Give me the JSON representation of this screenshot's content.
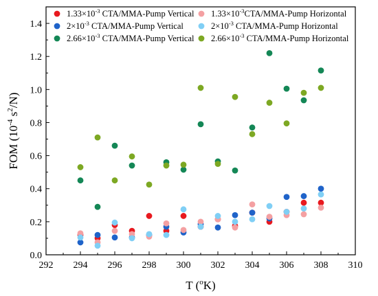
{
  "chart_data": {
    "type": "scatter",
    "title": "",
    "xlabel": "T (°K)",
    "xlabel_parts": {
      "pre": "T (",
      "sup": "o",
      "post": "K)"
    },
    "ylabel_parts": {
      "pre": "FOM (10",
      "sup1": "-4",
      "mid": " s",
      "sup2": "2",
      "post": "/N)"
    },
    "xlim": [
      292,
      310
    ],
    "ylim": [
      0.0,
      1.5
    ],
    "x_ticks": [
      292,
      294,
      296,
      298,
      300,
      302,
      304,
      306,
      308,
      310
    ],
    "y_ticks": [
      0.0,
      0.2,
      0.4,
      0.6,
      0.8,
      1.0,
      1.2,
      1.4
    ],
    "y_tick_labels": [
      "0.0",
      "0.2",
      "0.4",
      "0.6",
      "0.8",
      "1.0",
      "1.2",
      "1.4"
    ],
    "grid": false,
    "legend_position": "top",
    "series": [
      {
        "name_parts": {
          "pre": "1.33×10",
          "sup": "-3",
          "post": " CTA/MMA-Pump Vertical"
        },
        "color": "#e8191f",
        "points": [
          [
            294,
            0.12
          ],
          [
            295,
            0.1
          ],
          [
            296,
            0.18
          ],
          [
            297,
            0.145
          ],
          [
            298,
            0.235
          ],
          [
            299,
            0.145
          ],
          [
            300,
            0.235
          ],
          [
            301,
            0.17
          ],
          [
            302,
            0.215
          ],
          [
            303,
            0.175
          ],
          [
            304,
            0.255
          ],
          [
            305,
            0.2
          ],
          [
            306,
            0.26
          ],
          [
            307,
            0.315
          ],
          [
            308,
            0.315
          ]
        ]
      },
      {
        "name_parts": {
          "pre": "2×10",
          "sup": "-3",
          "post": " CTA/MMA-Pump Vertical"
        },
        "color": "#1f63c9",
        "points": [
          [
            294,
            0.075
          ],
          [
            295,
            0.12
          ],
          [
            296,
            0.105
          ],
          [
            297,
            0.105
          ],
          [
            298,
            0.12
          ],
          [
            299,
            0.17
          ],
          [
            300,
            0.135
          ],
          [
            301,
            0.185
          ],
          [
            302,
            0.165
          ],
          [
            303,
            0.24
          ],
          [
            304,
            0.255
          ],
          [
            305,
            0.22
          ],
          [
            306,
            0.35
          ],
          [
            307,
            0.355
          ],
          [
            308,
            0.4
          ]
        ]
      },
      {
        "name_parts": {
          "pre": "2.66×10",
          "sup": "-3",
          "post": " CTA/MMA-Pump Vertical"
        },
        "color": "#148756",
        "points": [
          [
            294,
            0.45
          ],
          [
            295,
            0.29
          ],
          [
            296,
            0.66
          ],
          [
            297,
            0.54
          ],
          [
            299,
            0.56
          ],
          [
            300,
            0.515
          ],
          [
            301,
            0.79
          ],
          [
            302,
            0.565
          ],
          [
            303,
            0.51
          ],
          [
            304,
            0.77
          ],
          [
            305,
            1.22
          ],
          [
            306,
            1.005
          ],
          [
            307,
            0.935
          ],
          [
            308,
            1.115
          ]
        ]
      },
      {
        "name_parts": {
          "pre": "1.33×10",
          "sup": "-3",
          "post": "CTA/MMA-Pump Horizontal"
        },
        "color": "#f4a0a2",
        "points": [
          [
            294,
            0.13
          ],
          [
            295,
            0.075
          ],
          [
            296,
            0.145
          ],
          [
            297,
            0.125
          ],
          [
            298,
            0.11
          ],
          [
            299,
            0.19
          ],
          [
            300,
            0.15
          ],
          [
            301,
            0.2
          ],
          [
            302,
            0.215
          ],
          [
            303,
            0.165
          ],
          [
            304,
            0.305
          ],
          [
            305,
            0.23
          ],
          [
            306,
            0.24
          ],
          [
            307,
            0.245
          ],
          [
            308,
            0.285
          ]
        ]
      },
      {
        "name_parts": {
          "pre": "2×10",
          "sup": "-3",
          "post": " CTA/MMA-Pump Horizontal"
        },
        "color": "#80cff5",
        "points": [
          [
            294,
            0.105
          ],
          [
            295,
            0.055
          ],
          [
            296,
            0.195
          ],
          [
            297,
            0.1
          ],
          [
            298,
            0.125
          ],
          [
            299,
            0.12
          ],
          [
            300,
            0.275
          ],
          [
            301,
            0.17
          ],
          [
            302,
            0.235
          ],
          [
            303,
            0.2
          ],
          [
            304,
            0.215
          ],
          [
            305,
            0.295
          ],
          [
            306,
            0.26
          ],
          [
            307,
            0.28
          ],
          [
            308,
            0.365
          ]
        ]
      },
      {
        "name_parts": {
          "pre": "2.66×10",
          "sup": "-3",
          "post": " CTA/MMA-Pump Horizontal"
        },
        "color": "#7da823",
        "points": [
          [
            294,
            0.53
          ],
          [
            295,
            0.71
          ],
          [
            296,
            0.45
          ],
          [
            297,
            0.595
          ],
          [
            298,
            0.425
          ],
          [
            299,
            0.54
          ],
          [
            300,
            0.545
          ],
          [
            301,
            1.01
          ],
          [
            302,
            0.55
          ],
          [
            303,
            0.955
          ],
          [
            304,
            0.73
          ],
          [
            305,
            0.92
          ],
          [
            306,
            0.795
          ],
          [
            307,
            0.98
          ],
          [
            308,
            1.01
          ]
        ]
      }
    ]
  }
}
